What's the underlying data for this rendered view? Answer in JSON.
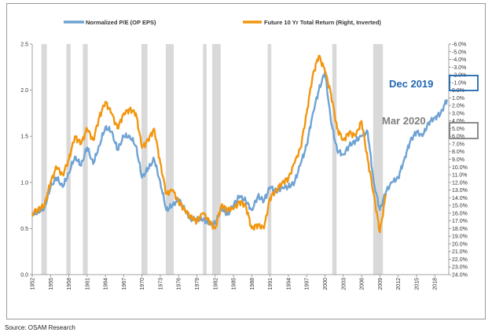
{
  "source": "Source: OSAM Research",
  "chart_data": {
    "type": "line",
    "title": "",
    "xlabel": "",
    "ylabel": "",
    "x_range": [
      1952,
      2020.3
    ],
    "ylim": [
      0.0,
      2.5
    ],
    "y2lim": [
      -6.0,
      24.0
    ],
    "y2_inverted": true,
    "grid": false,
    "legend_position": "top",
    "x_ticks": [
      "1952",
      "1955",
      "1958",
      "1961",
      "1964",
      "1967",
      "1970",
      "1973",
      "1976",
      "1979",
      "1982",
      "1985",
      "1988",
      "1991",
      "1994",
      "1997",
      "2000",
      "2003",
      "2006",
      "2009",
      "2012",
      "2015",
      "2018"
    ],
    "y_ticks": [
      "0.0",
      "0.5",
      "1.0",
      "1.5",
      "2.0",
      "2.5"
    ],
    "y2_ticks": [
      "-6.0%",
      "-5.0%",
      "-4.0%",
      "-3.0%",
      "-2.0%",
      "-1.0%",
      "0.0%",
      "1.0%",
      "2.0%",
      "3.0%",
      "4.0%",
      "5.0%",
      "6.0%",
      "7.0%",
      "8.0%",
      "9.0%",
      "10.0%",
      "11.0%",
      "12.0%",
      "13.0%",
      "14.0%",
      "15.0%",
      "16.0%",
      "17.0%",
      "18.0%",
      "19.0%",
      "20.0%",
      "21.0%",
      "22.0%",
      "23.0%",
      "24.0%"
    ],
    "recessions": [
      [
        1953.5,
        1954.4
      ],
      [
        1957.6,
        1958.3
      ],
      [
        1960.3,
        1961.1
      ],
      [
        1969.9,
        1970.9
      ],
      [
        1973.9,
        1975.2
      ],
      [
        1980.0,
        1980.6
      ],
      [
        1981.5,
        1982.9
      ],
      [
        1990.6,
        1991.2
      ],
      [
        2001.2,
        2001.9
      ],
      [
        2007.9,
        2009.5
      ]
    ],
    "series": [
      {
        "name": "Normalized P/E (OP EPS)",
        "axis": "left",
        "color": "#6fa3d4",
        "x": [
          1952,
          1953,
          1954,
          1955,
          1956,
          1957,
          1958,
          1959,
          1960,
          1961,
          1962,
          1963,
          1964,
          1965,
          1966,
          1967,
          1968,
          1969,
          1970,
          1971,
          1972,
          1973,
          1974,
          1975,
          1976,
          1977,
          1978,
          1979,
          1980,
          1981,
          1982,
          1983,
          1984,
          1985,
          1986,
          1987,
          1988,
          1989,
          1990,
          1991,
          1992,
          1993,
          1994,
          1995,
          1996,
          1997,
          1998,
          1999,
          2000,
          2001,
          2002,
          2003,
          2004,
          2005,
          2006,
          2007,
          2008,
          2009,
          2010,
          2011,
          2012,
          2013,
          2014,
          2015,
          2016,
          2017,
          2018,
          2019,
          2020
        ],
        "values": [
          0.65,
          0.68,
          0.72,
          0.95,
          1.05,
          0.95,
          1.1,
          1.28,
          1.18,
          1.38,
          1.2,
          1.4,
          1.6,
          1.55,
          1.35,
          1.5,
          1.5,
          1.4,
          1.05,
          1.15,
          1.25,
          1.0,
          0.7,
          0.75,
          0.82,
          0.7,
          0.6,
          0.6,
          0.6,
          0.55,
          0.55,
          0.72,
          0.65,
          0.75,
          0.85,
          0.8,
          0.7,
          0.85,
          0.8,
          0.95,
          0.9,
          0.95,
          0.95,
          1.0,
          1.2,
          1.4,
          1.75,
          2.0,
          2.2,
          1.65,
          1.35,
          1.3,
          1.4,
          1.45,
          1.5,
          1.55,
          1.0,
          0.7,
          0.9,
          1.0,
          1.05,
          1.25,
          1.45,
          1.55,
          1.5,
          1.65,
          1.7,
          1.75,
          1.9
        ]
      },
      {
        "name": "Future 10 Yr Total Return (Right, Inverted)",
        "axis": "right",
        "color": "#f2960f",
        "x": [
          1952,
          1953,
          1954,
          1955,
          1956,
          1957,
          1958,
          1959,
          1960,
          1961,
          1962,
          1963,
          1964,
          1965,
          1966,
          1967,
          1968,
          1969,
          1970,
          1971,
          1972,
          1973,
          1974,
          1975,
          1976,
          1977,
          1978,
          1979,
          1980,
          1981,
          1982,
          1983,
          1984,
          1985,
          1986,
          1987,
          1988,
          1989,
          1990,
          1991,
          1992,
          1993,
          1994,
          1995,
          1996,
          1997,
          1998,
          1999,
          2000,
          2001,
          2002,
          2003,
          2004,
          2005,
          2006,
          2007,
          2008,
          2009,
          2010
        ],
        "values": [
          16.0,
          15.5,
          15.0,
          12.0,
          10.0,
          11.0,
          9.0,
          6.0,
          7.0,
          5.0,
          6.5,
          3.5,
          1.5,
          3.0,
          5.0,
          3.0,
          2.5,
          3.0,
          7.5,
          6.5,
          5.0,
          9.5,
          13.5,
          13.0,
          14.5,
          15.5,
          16.5,
          17.0,
          16.0,
          17.0,
          18.0,
          15.0,
          15.5,
          15.5,
          14.5,
          15.0,
          18.0,
          17.5,
          18.0,
          14.0,
          13.0,
          12.0,
          11.5,
          9.5,
          7.5,
          3.0,
          -2.0,
          -4.5,
          -2.5,
          0.5,
          5.0,
          6.5,
          5.5,
          6.0,
          4.0,
          9.0,
          13.5,
          18.5,
          13.5
        ]
      }
    ],
    "annotations": [
      {
        "text": "Dec 2019",
        "color": "#1f67b1"
      },
      {
        "text": "Mar 2020",
        "color": "#7f7f7f"
      }
    ]
  }
}
